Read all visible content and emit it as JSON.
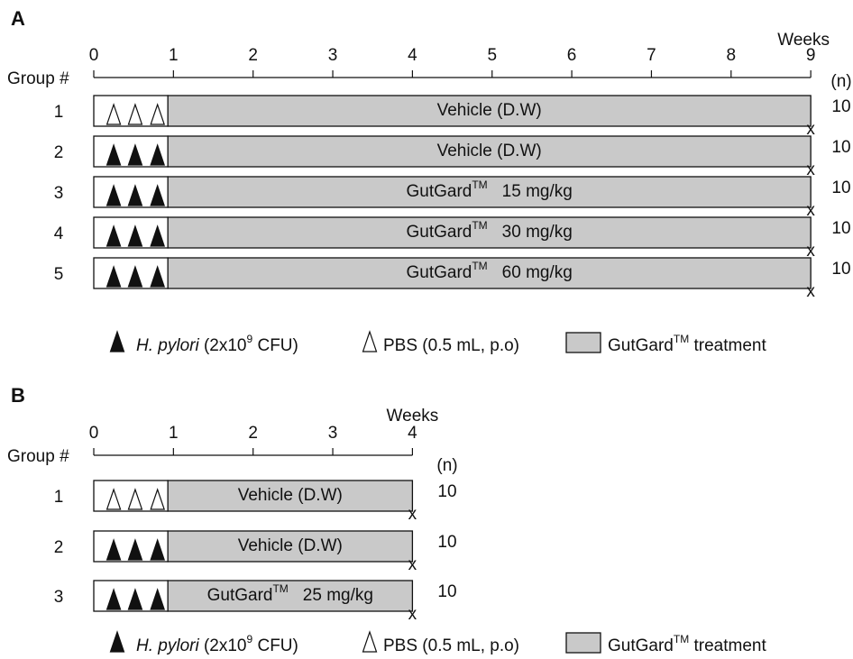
{
  "colors": {
    "treatment_fill": "#c9c9c9",
    "infection_box_fill": "#ffffff",
    "stroke": "#111111",
    "filled_marker": "#111111",
    "open_marker": "#ffffff"
  },
  "icons": {
    "filled_triangle": "filled-triangle-icon",
    "open_triangle": "open-triangle-icon",
    "end_mark": "sacrifice-x-mark"
  },
  "panels": [
    {
      "letter": "A",
      "axis_title": "Weeks",
      "group_header": "Group #",
      "n_header": "(n)",
      "max_week": 9,
      "ticks": [
        "0",
        "1",
        "2",
        "3",
        "4",
        "5",
        "6",
        "7",
        "8",
        "9"
      ],
      "end_mark": "x",
      "groups": [
        {
          "number": "1",
          "inoculation": "open",
          "treatment_label": "Vehicle (D.W)",
          "trademark": "",
          "dose": "",
          "n": "10"
        },
        {
          "number": "2",
          "inoculation": "filled",
          "treatment_label": "Vehicle (D.W)",
          "trademark": "",
          "dose": "",
          "n": "10"
        },
        {
          "number": "3",
          "inoculation": "filled",
          "treatment_label": "GutGard",
          "trademark": "TM",
          "dose": "15 mg/kg",
          "n": "10"
        },
        {
          "number": "4",
          "inoculation": "filled",
          "treatment_label": "GutGard",
          "trademark": "TM",
          "dose": "30 mg/kg",
          "n": "10"
        },
        {
          "number": "5",
          "inoculation": "filled",
          "treatment_label": "GutGard",
          "trademark": "TM",
          "dose": "60 mg/kg",
          "n": "10"
        }
      ],
      "legend": {
        "hp_name": "H. pylori",
        "hp_dose_prefix": " (2x10",
        "hp_exponent": "9",
        "hp_dose_suffix": " CFU)",
        "pbs_label": "PBS (0.5 mL, p.o)",
        "treat_label": "GutGard",
        "treat_trademark": "TM",
        "treat_suffix": " treatment"
      }
    },
    {
      "letter": "B",
      "axis_title": "Weeks",
      "group_header": "Group #",
      "n_header": "(n)",
      "max_week": 4,
      "ticks": [
        "0",
        "1",
        "2",
        "3",
        "4"
      ],
      "end_mark": "x",
      "groups": [
        {
          "number": "1",
          "inoculation": "open",
          "treatment_label": "Vehicle (D.W)",
          "trademark": "",
          "dose": "",
          "n": "10"
        },
        {
          "number": "2",
          "inoculation": "filled",
          "treatment_label": "Vehicle (D.W)",
          "trademark": "",
          "dose": "",
          "n": "10"
        },
        {
          "number": "3",
          "inoculation": "filled",
          "treatment_label": "GutGard",
          "trademark": "TM",
          "dose": "25 mg/kg",
          "n": "10"
        }
      ],
      "legend": {
        "hp_name": "H. pylori",
        "hp_dose_prefix": " (2x10",
        "hp_exponent": "9",
        "hp_dose_suffix": " CFU)",
        "pbs_label": "PBS (0.5 mL, p.o)",
        "treat_label": "GutGard",
        "treat_trademark": "TM",
        "treat_suffix": " treatment"
      }
    }
  ]
}
